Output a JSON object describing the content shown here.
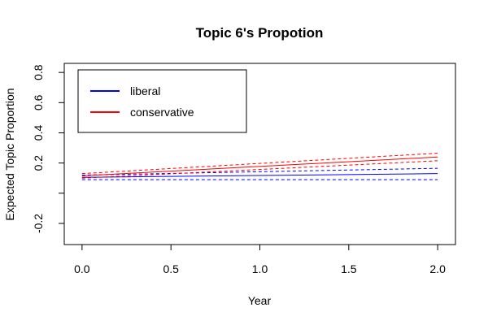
{
  "chart_data": {
    "type": "line",
    "title": "Topic 6's Propotion",
    "xlabel": "Year",
    "ylabel": "Expected Topic Proportion",
    "xlim": [
      -0.1,
      2.1
    ],
    "ylim": [
      -0.34,
      0.86
    ],
    "x_ticks": [
      0.0,
      0.5,
      1.0,
      1.5,
      2.0
    ],
    "x_tick_labels": [
      "0.0",
      "0.5",
      "1.0",
      "1.5",
      "2.0"
    ],
    "y_ticks": [
      -0.2,
      0.2,
      0.4,
      0.6,
      0.8
    ],
    "y_tick_labels": [
      "-0.2",
      "0.2",
      "0.4",
      "0.6",
      "0.8"
    ],
    "y_minor_ticks": [
      0.0
    ],
    "grid": false,
    "legend_position": "top-left",
    "x": [
      0.0,
      2.0
    ],
    "series": [
      {
        "name": "liberal",
        "color": "#0000FF",
        "line_style": "solid",
        "values": [
          0.105,
          0.13
        ]
      },
      {
        "name": "",
        "color": "#0000FF",
        "line_style": "dashed",
        "values": [
          0.09,
          0.09
        ]
      },
      {
        "name": "",
        "color": "#0000FF",
        "line_style": "dashed",
        "values": [
          0.12,
          0.165
        ]
      },
      {
        "name": "conservative",
        "color": "#FF0000",
        "line_style": "solid",
        "values": [
          0.115,
          0.24
        ]
      },
      {
        "name": "",
        "color": "#FF0000",
        "line_style": "dashed",
        "values": [
          0.1,
          0.215
        ]
      },
      {
        "name": "",
        "color": "#FF0000",
        "line_style": "dashed",
        "values": [
          0.13,
          0.265
        ]
      }
    ]
  }
}
